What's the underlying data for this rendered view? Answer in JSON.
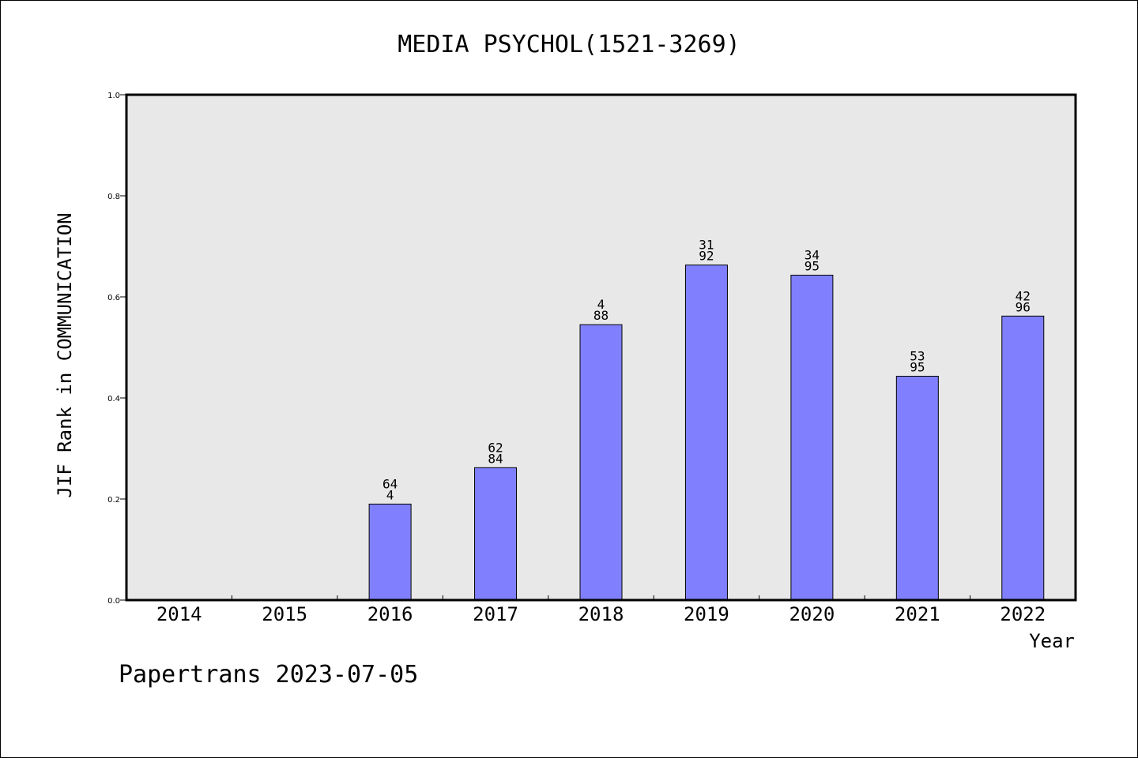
{
  "chart_data": {
    "type": "bar",
    "title": "MEDIA PSYCHOL(1521-3269)",
    "xlabel": "Year",
    "ylabel": "JIF Rank in COMMUNICATION",
    "ylim": [
      0,
      1.0
    ],
    "yticks": [
      "0.0",
      "0.2",
      "0.4",
      "0.6",
      "0.8",
      "1.0"
    ],
    "categories": [
      "2014",
      "2015",
      "2016",
      "2017",
      "2018",
      "2019",
      "2020",
      "2021",
      "2022"
    ],
    "values": [
      null,
      null,
      0.19,
      0.262,
      0.545,
      0.663,
      0.643,
      0.443,
      0.562
    ],
    "labels_top": [
      "",
      "",
      "64",
      "62",
      "4",
      "31",
      "34",
      "53",
      "42"
    ],
    "labels_bottom": [
      "",
      "",
      "4",
      "84",
      "88",
      "92",
      "95",
      "95",
      "96"
    ],
    "bar_color": "#8080ff",
    "plot_background": "#e8e8e8",
    "grid": false,
    "legend": "none"
  },
  "footer": "Papertrans 2023-07-05"
}
